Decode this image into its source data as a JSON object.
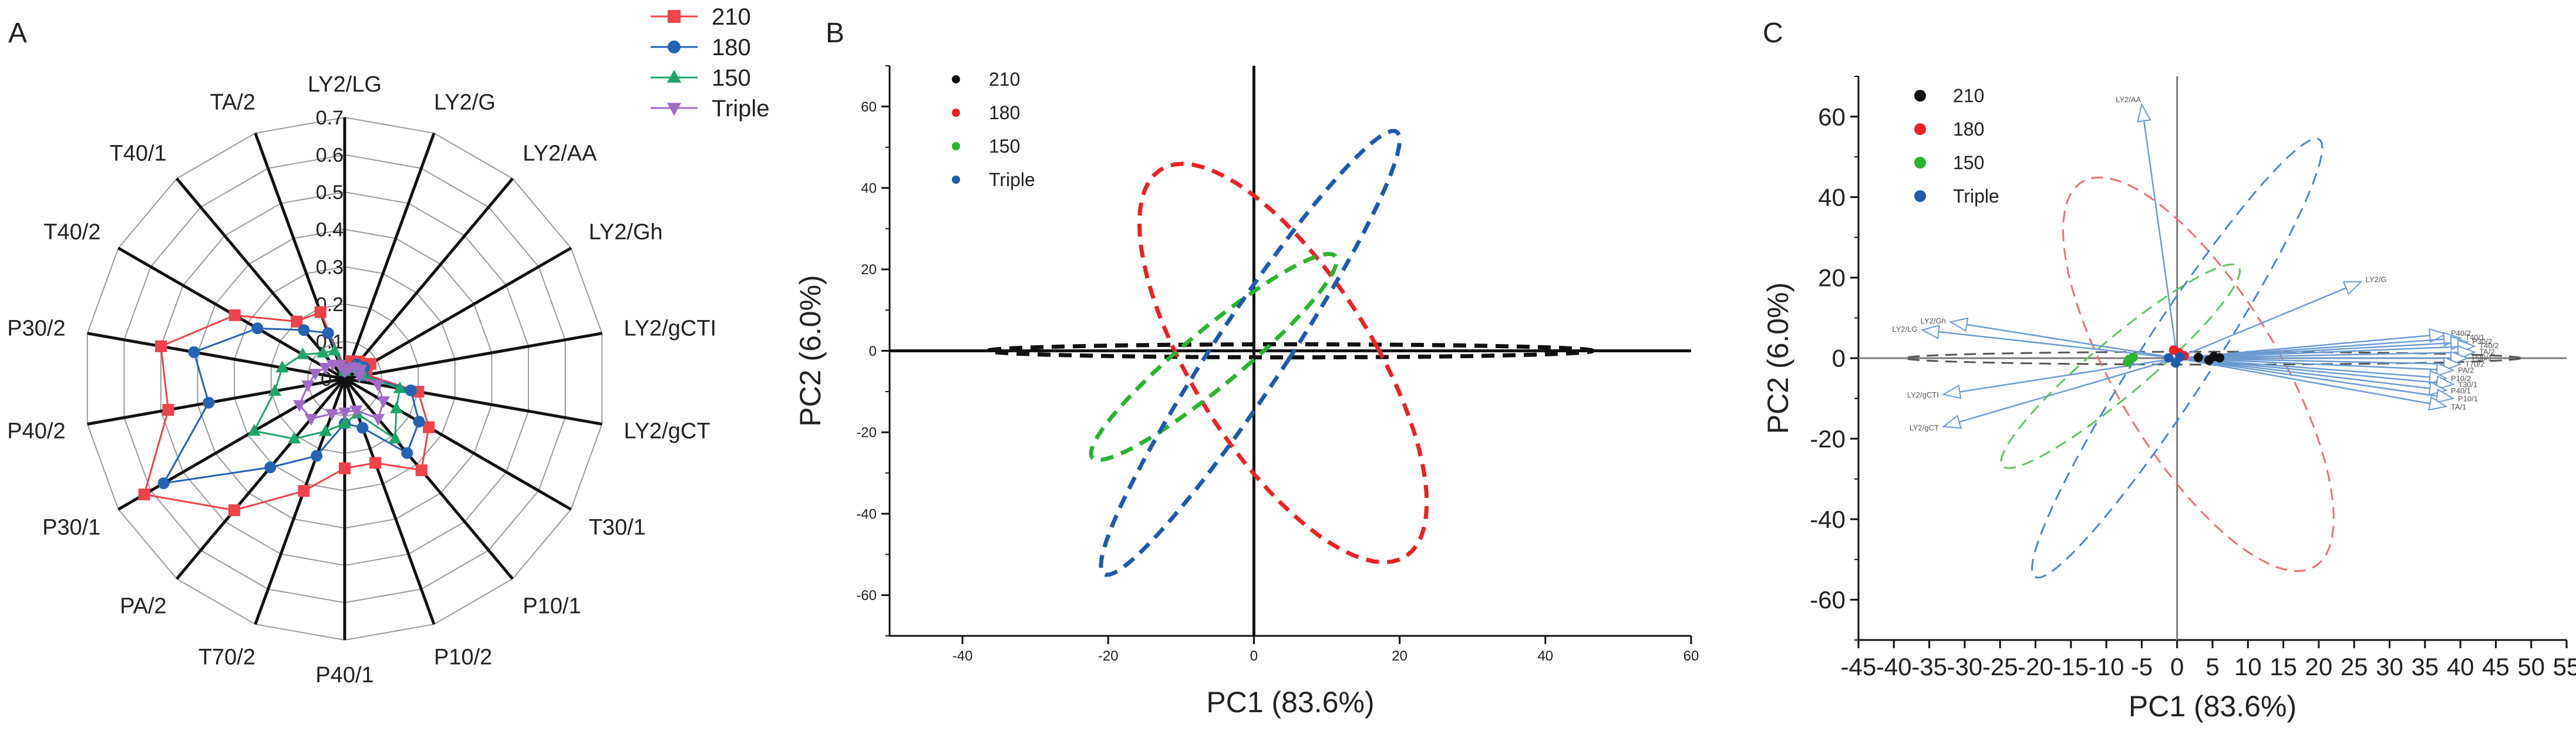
{
  "panels": {
    "a": "A",
    "b": "B",
    "c": "C"
  },
  "chart_data": [
    {
      "panel": "A",
      "type": "radar",
      "axes": [
        "LY2/LG",
        "LY2/G",
        "LY2/AA",
        "LY2/Gh",
        "LY2/gCTI",
        "LY2/gCT",
        "T30/1",
        "P10/1",
        "P10/2",
        "P40/1",
        "T70/2",
        "PA/2",
        "P30/1",
        "P40/2",
        "P30/2",
        "T40/2",
        "T40/1",
        "TA/2"
      ],
      "r_ticks": [
        "0.1",
        "0.2",
        "0.3",
        "0.4",
        "0.5",
        "0.6",
        "0.7"
      ],
      "r_zero": "0",
      "r_max": 0.7,
      "legend": "top-right",
      "series": [
        {
          "name": "210",
          "color": "#f0424a",
          "marker": "square",
          "values": [
            0.03,
            0.05,
            0.06,
            0.08,
            0.06,
            0.2,
            0.26,
            0.32,
            0.24,
            0.24,
            0.32,
            0.46,
            0.62,
            0.48,
            0.5,
            0.34,
            0.2,
            0.19
          ]
        },
        {
          "name": "180",
          "color": "#2462b4",
          "marker": "circle",
          "values": [
            0.02,
            0.03,
            0.05,
            0.06,
            0.05,
            0.18,
            0.23,
            0.26,
            0.14,
            0.12,
            0.22,
            0.31,
            0.56,
            0.37,
            0.41,
            0.27,
            0.17,
            0.13
          ]
        },
        {
          "name": "150",
          "color": "#1ea56a",
          "marker": "triangle",
          "values": [
            0.02,
            0.03,
            0.04,
            0.05,
            0.05,
            0.15,
            0.16,
            0.21,
            0.1,
            0.12,
            0.15,
            0.21,
            0.28,
            0.19,
            0.17,
            0.13,
            0.09,
            0.08
          ]
        },
        {
          "name": "Triple",
          "color": "#a06ac6",
          "marker": "triangle-down",
          "values": [
            0.02,
            0.03,
            0.04,
            0.05,
            0.04,
            0.09,
            0.12,
            0.14,
            0.09,
            0.09,
            0.1,
            0.14,
            0.14,
            0.1,
            0.08,
            0.06,
            0.05,
            0.04
          ]
        }
      ]
    },
    {
      "panel": "B",
      "type": "scatter",
      "title": "",
      "xlabel": "PC1 (83.6%)",
      "ylabel": "PC2 (6.0%)",
      "xlim": [
        -50,
        60
      ],
      "ylim": [
        -70,
        70
      ],
      "xticks": [
        "-40",
        "-20",
        "0",
        "20",
        "40",
        "60"
      ],
      "yticks": [
        "60",
        "40",
        "20",
        "0",
        "-20",
        "-40",
        "-60"
      ],
      "legend": "top-left",
      "series": [
        {
          "name": "210",
          "color": "#111111",
          "ellipse": {
            "cx": 5,
            "cy": 0,
            "rx": 41.5,
            "ry": 1.6,
            "angle": 0
          }
        },
        {
          "name": "180",
          "color": "#ee2024",
          "ellipse": {
            "cx": 4,
            "cy": -3,
            "rx": 13.5,
            "ry": 51,
            "angle": 17
          }
        },
        {
          "name": "150",
          "color": "#2ab52f",
          "ellipse": {
            "cx": -5.5,
            "cy": -1.5,
            "rx": 5,
            "ry": 30,
            "angle": -33
          }
        },
        {
          "name": "Triple",
          "color": "#1d5aad",
          "ellipse": {
            "cx": -0.5,
            "cy": -0.5,
            "rx": 5.5,
            "ry": 58,
            "angle": -20
          }
        }
      ]
    },
    {
      "panel": "C",
      "type": "scatter",
      "title": "",
      "xlabel": "PC1 (83.6%)",
      "ylabel": "PC2 (6.0%)",
      "xlim": [
        -45,
        55
      ],
      "ylim": [
        -70,
        70
      ],
      "xticks": [
        "-45",
        "-40",
        "-35",
        "-30",
        "-25",
        "-20",
        "-15",
        "-10",
        "-5",
        "0",
        "5",
        "10",
        "15",
        "20",
        "25",
        "30",
        "35",
        "40",
        "45",
        "50",
        "55"
      ],
      "yticks": [
        "60",
        "40",
        "20",
        "0",
        "-20",
        "-40",
        "-60"
      ],
      "legend": "top-left",
      "series": [
        {
          "name": "210",
          "color": "#111111",
          "ellipse": {
            "cx": 5,
            "cy": 0,
            "rx": 43.5,
            "ry": 1.6,
            "angle": 0
          },
          "points": [
            [
              3,
              0.2
            ],
            [
              4.5,
              -0.5
            ],
            [
              6,
              0.1
            ],
            [
              5.2,
              0.4
            ]
          ]
        },
        {
          "name": "180",
          "color": "#ee2024",
          "ellipse": {
            "cx": 3,
            "cy": -4,
            "rx": 12.5,
            "ry": 51,
            "angle": 17
          },
          "points": [
            [
              -0.5,
              2
            ],
            [
              1,
              0.6
            ],
            [
              0.2,
              1.4
            ]
          ]
        },
        {
          "name": "150",
          "color": "#2ab52f",
          "ellipse": {
            "cx": -8,
            "cy": -2,
            "rx": 5,
            "ry": 30,
            "angle": -33
          },
          "points": [
            [
              -7,
              -1
            ],
            [
              -6.2,
              0.2
            ],
            [
              -6.8,
              -0.3
            ]
          ]
        },
        {
          "name": "Triple",
          "color": "#1d5aad",
          "ellipse": {
            "cx": 0,
            "cy": 0,
            "rx": 5.5,
            "ry": 58,
            "angle": -20
          },
          "points": [
            [
              -1.2,
              0.1
            ],
            [
              -0.2,
              -1.2
            ],
            [
              0.4,
              0.3
            ]
          ]
        }
      ],
      "loadings": {
        "color": "#6a9bd1",
        "vectors": [
          {
            "label": "LY2/AA",
            "x": -5,
            "y": 63
          },
          {
            "label": "LY2/G",
            "x": 26,
            "y": 19
          },
          {
            "label": "LY2/Gh",
            "x": -32,
            "y": 9
          },
          {
            "label": "LY2/LG",
            "x": -36,
            "y": 7
          },
          {
            "label": "LY2/gCTI",
            "x": -33,
            "y": -9
          },
          {
            "label": "LY2/gCT",
            "x": -33,
            "y": -17
          },
          {
            "label": "P40/2",
            "x": 38,
            "y": 6
          },
          {
            "label": "T40/1",
            "x": 40,
            "y": 5
          },
          {
            "label": "P30/2",
            "x": 41,
            "y": 4
          },
          {
            "label": "T40/2",
            "x": 42,
            "y": 3
          },
          {
            "label": "TA/2",
            "x": 42,
            "y": 1.5
          },
          {
            "label": "P30/1",
            "x": 41,
            "y": 0
          },
          {
            "label": "T70/2",
            "x": 40,
            "y": -1.5
          },
          {
            "label": "PA/2",
            "x": 39,
            "y": -3
          },
          {
            "label": "P10/2",
            "x": 38,
            "y": -5
          },
          {
            "label": "T30/1",
            "x": 39,
            "y": -6.5
          },
          {
            "label": "P40/1",
            "x": 38,
            "y": -8
          },
          {
            "label": "P10/1",
            "x": 39,
            "y": -10
          },
          {
            "label": "TA/1",
            "x": 38,
            "y": -12
          }
        ]
      }
    }
  ]
}
